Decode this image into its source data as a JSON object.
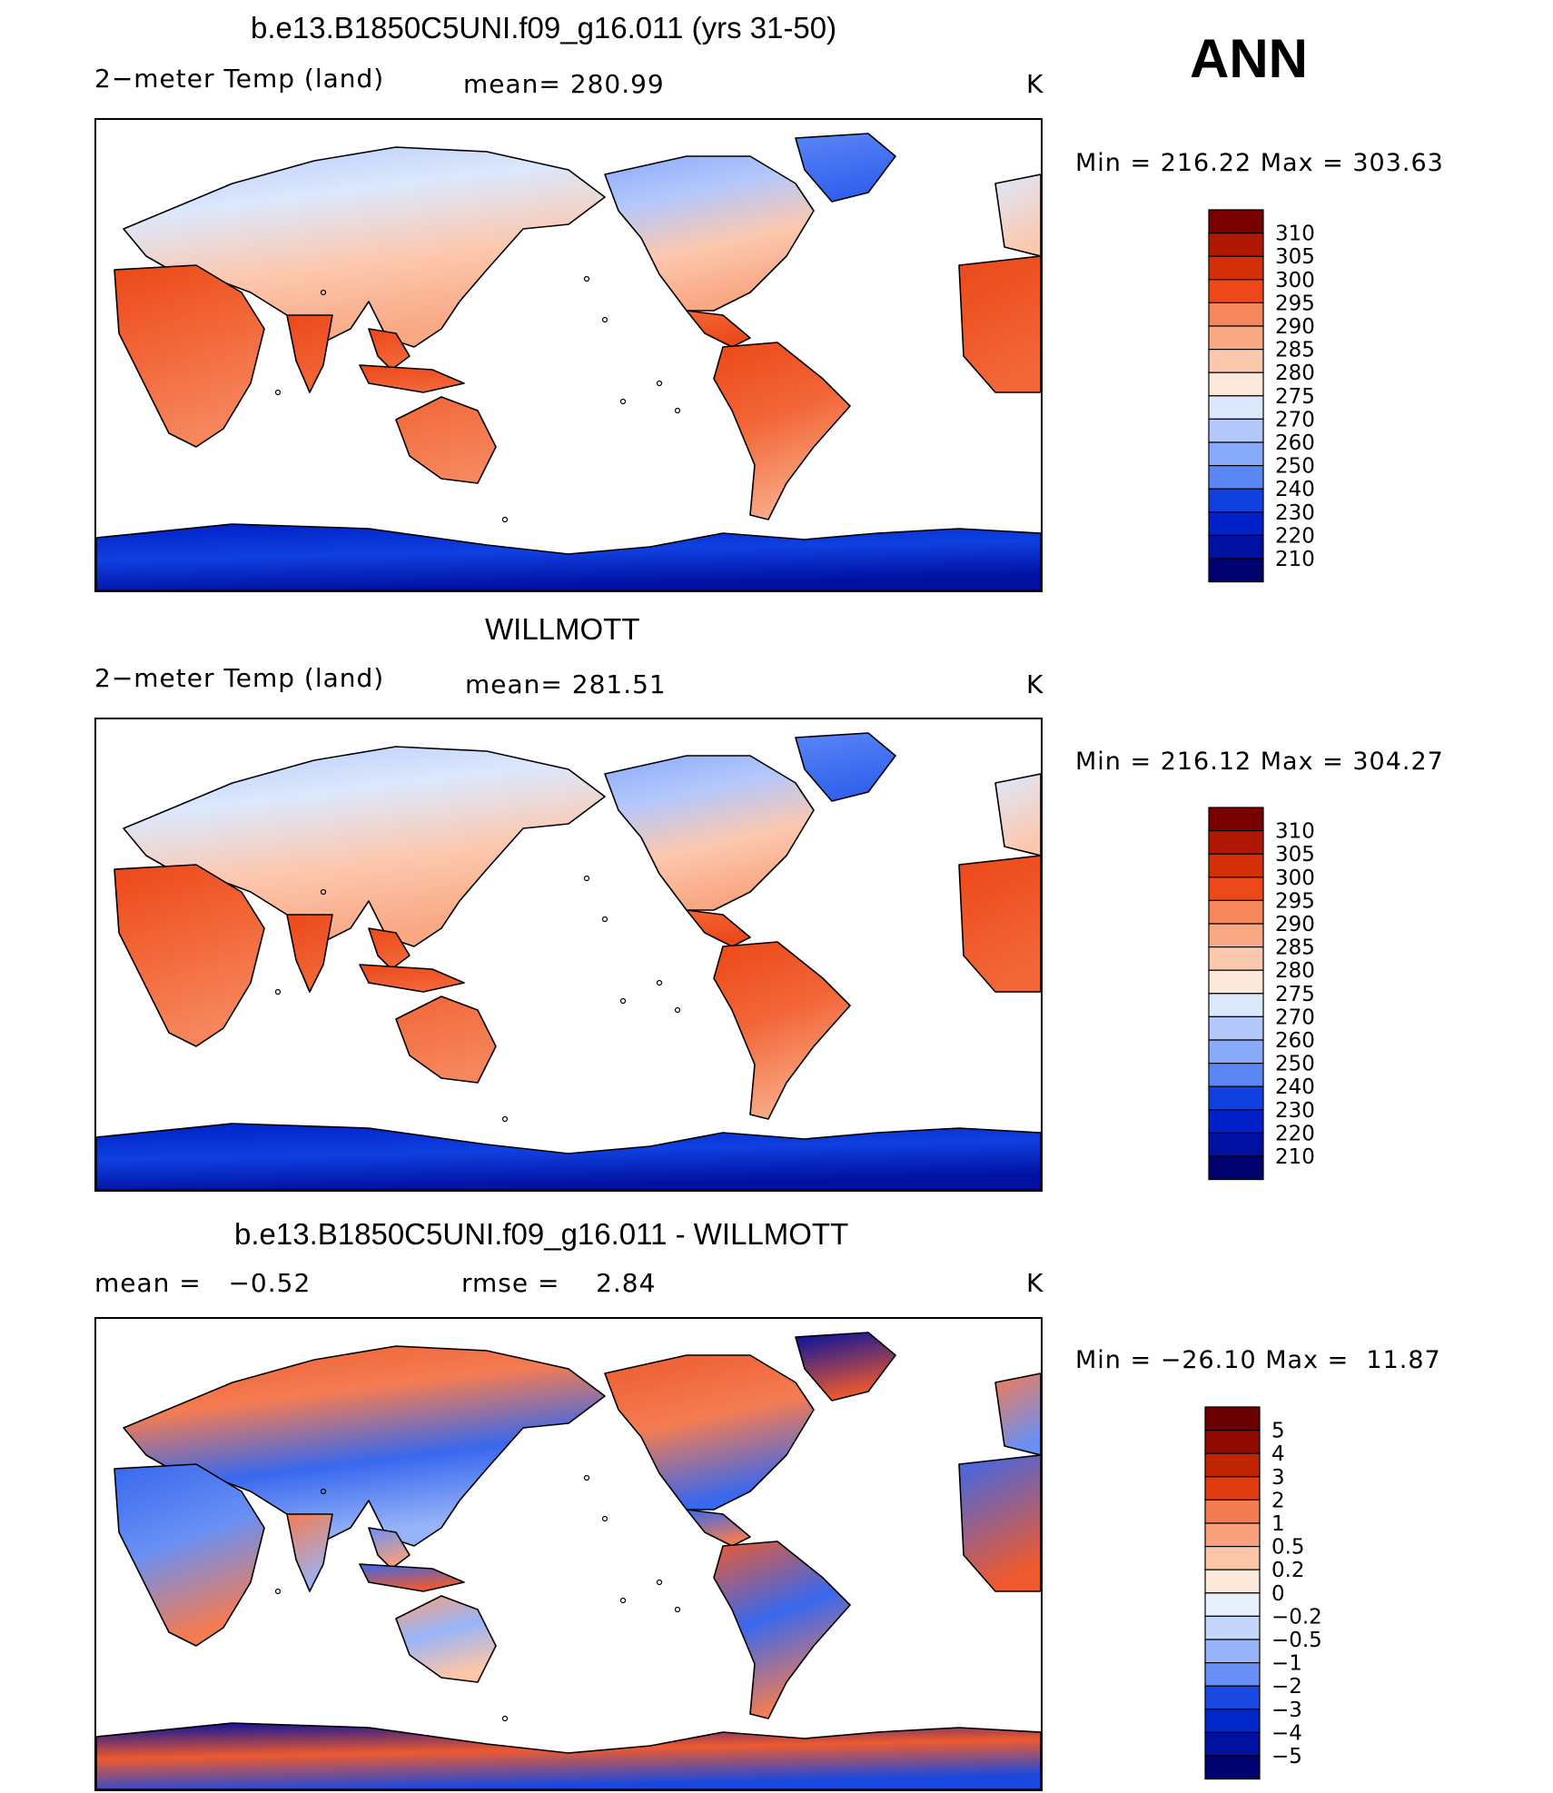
{
  "season": "ANN",
  "colors": {
    "abs_scale": [
      "#00006e",
      "#0010a0",
      "#0020c8",
      "#1040e0",
      "#3060ee",
      "#5a86f6",
      "#8aaafa",
      "#b4c8fb",
      "#dce8fc",
      "#fde8dc",
      "#fcc8ae",
      "#f9a884",
      "#f6865c",
      "#f26638",
      "#ec4818",
      "#d43008",
      "#b01800",
      "#7a0000"
    ],
    "diff_scale": [
      "#00006e",
      "#0010a0",
      "#0028c8",
      "#1848e0",
      "#3868ee",
      "#6890f4",
      "#98b4f8",
      "#c4d6fb",
      "#e8f0fd",
      "#fde9dc",
      "#fcc6a8",
      "#f9a07c",
      "#f47c52",
      "#ee5a2e",
      "#e03c10",
      "#c02400",
      "#900c00",
      "#6a0000"
    ]
  },
  "panels": [
    {
      "title": "b.e13.B1850C5UNI.f09_g16.011 (yrs 31-50)",
      "left_label": "2−meter Temp (land)",
      "center_label": "mean= 280.99",
      "units": "K",
      "minmax": "Min = 216.22 Max = 303.63",
      "scale": "abs",
      "colorbar_labels": [
        "310",
        "305",
        "300",
        "295",
        "290",
        "285",
        "280",
        "275",
        "270",
        "260",
        "250",
        "240",
        "230",
        "220",
        "210"
      ]
    },
    {
      "title": "WILLMOTT",
      "left_label": "2−meter Temp (land)",
      "center_label": "mean= 281.51",
      "units": "K",
      "minmax": "Min = 216.12 Max = 304.27",
      "scale": "abs",
      "colorbar_labels": [
        "310",
        "305",
        "300",
        "295",
        "290",
        "285",
        "280",
        "275",
        "270",
        "260",
        "250",
        "240",
        "230",
        "220",
        "210"
      ]
    },
    {
      "title": "b.e13.B1850C5UNI.f09_g16.011 - WILLMOTT",
      "left_label": "mean =   −0.52",
      "center_label": "rmse =    2.84",
      "units": "K",
      "minmax": "Min = −26.10 Max =  11.87",
      "scale": "diff",
      "colorbar_labels": [
        "5",
        "4",
        "3",
        "2",
        "1",
        "0.5",
        "0.2",
        "0",
        "−0.2",
        "−0.5",
        "−1",
        "−2",
        "−3",
        "−4",
        "−5"
      ]
    }
  ],
  "chart_data": [
    {
      "type": "heatmap",
      "title": "b.e13.B1850C5UNI.f09_g16.011 (yrs 31-50)",
      "variable": "2−meter Temp (land)",
      "units": "K",
      "mean": 280.99,
      "min": 216.22,
      "max": 303.63,
      "colorbar_levels": [
        210,
        220,
        230,
        240,
        250,
        260,
        270,
        275,
        280,
        285,
        290,
        295,
        300,
        305,
        310
      ]
    },
    {
      "type": "heatmap",
      "title": "WILLMOTT",
      "variable": "2−meter Temp (land)",
      "units": "K",
      "mean": 281.51,
      "min": 216.12,
      "max": 304.27,
      "colorbar_levels": [
        210,
        220,
        230,
        240,
        250,
        260,
        270,
        275,
        280,
        285,
        290,
        295,
        300,
        305,
        310
      ]
    },
    {
      "type": "heatmap",
      "title": "b.e13.B1850C5UNI.f09_g16.011 - WILLMOTT",
      "units": "K",
      "mean": -0.52,
      "rmse": 2.84,
      "min": -26.1,
      "max": 11.87,
      "colorbar_levels": [
        -5,
        -4,
        -3,
        -2,
        -1,
        -0.5,
        -0.2,
        0,
        0.2,
        0.5,
        1,
        2,
        3,
        4,
        5
      ]
    }
  ]
}
